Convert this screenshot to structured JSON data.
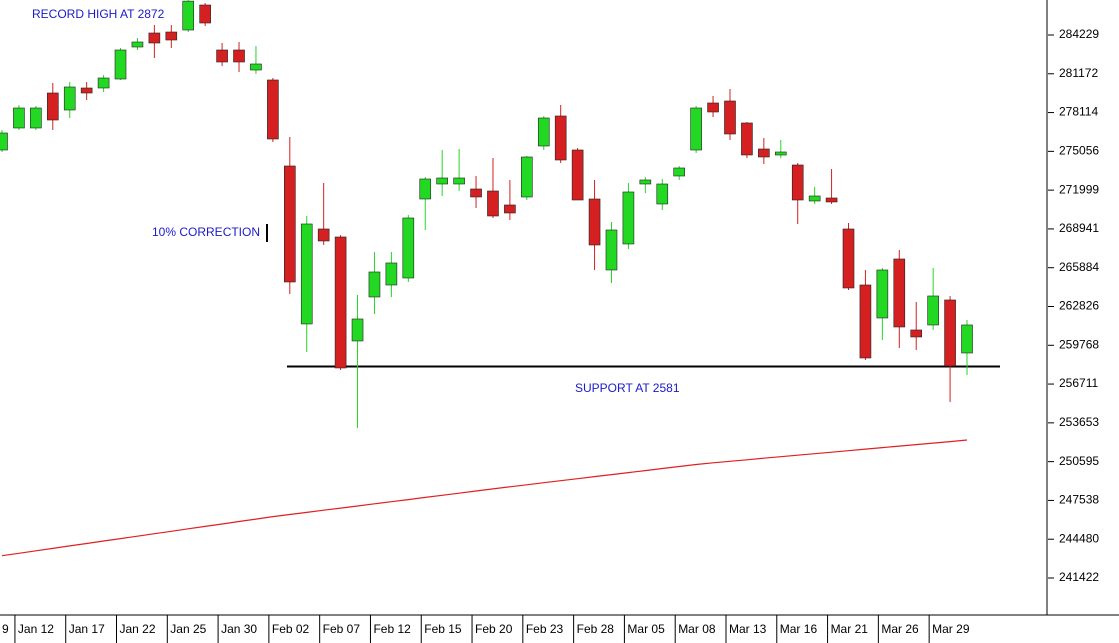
{
  "chart_data": {
    "type": "candlestick",
    "categories": [
      "9",
      "Jan 12",
      null,
      null,
      "Jan 17",
      null,
      null,
      "Jan 22",
      null,
      null,
      "Jan 25",
      null,
      null,
      "Jan 30",
      null,
      null,
      "Feb 02",
      null,
      null,
      "Feb 07",
      null,
      null,
      "Feb 12",
      null,
      null,
      "Feb 15",
      null,
      null,
      "Feb 20",
      null,
      null,
      "Feb 23",
      null,
      null,
      "Feb 28",
      null,
      null,
      "Mar 05",
      null,
      null,
      "Mar 08",
      null,
      null,
      "Mar 13",
      null,
      null,
      "Mar 16",
      null,
      null,
      "Mar 21",
      null,
      null,
      "Mar 26",
      null,
      null,
      "Mar 29",
      null,
      null
    ],
    "open": [
      275163,
      276898,
      276898,
      279657,
      278316,
      280051,
      280051,
      280760,
      283283,
      284387,
      284465,
      284623,
      286594,
      283047,
      283047,
      281470,
      280682,
      273902,
      261449,
      268936,
      268306,
      260108,
      263575,
      264521,
      265073,
      271301,
      272483,
      272483,
      272089,
      271931,
      270828,
      271458,
      275479,
      277844,
      275163,
      271301,
      265704,
      267754,
      272483,
      270907,
      273114,
      275163,
      278869,
      279026,
      277292,
      275242,
      274769,
      273981,
      271143,
      271380,
      268936,
      264521,
      261920,
      266571,
      260974,
      261368,
      263339,
      259161
    ],
    "high": [
      276740,
      278711,
      278632,
      280445,
      280524,
      280524,
      281076,
      283204,
      283992,
      285017,
      285017,
      287200,
      286752,
      283598,
      283677,
      283362,
      280839,
      276188,
      269961,
      272562,
      268463,
      263733,
      267123,
      267123,
      270040,
      273035,
      275163,
      275242,
      273114,
      274533,
      272799,
      274690,
      277844,
      278711,
      275321,
      272799,
      269488,
      272562,
      273035,
      272877,
      273902,
      278632,
      279420,
      279972,
      277371,
      276110,
      275952,
      274139,
      272247,
      273666,
      269409,
      265704,
      265862,
      267281,
      263181,
      265862,
      263654,
      261762
    ],
    "low": [
      275006,
      276740,
      276740,
      276740,
      277686,
      279105,
      279736,
      280682,
      283047,
      282416,
      283204,
      284465,
      284938,
      281785,
      281312,
      281155,
      275794,
      263812,
      259240,
      267675,
      257821,
      253248,
      262235,
      263575,
      264758,
      268857,
      271537,
      271931,
      270592,
      269803,
      269645,
      271222,
      275163,
      274139,
      271222,
      265704,
      264679,
      267360,
      271774,
      270434,
      272799,
      274927,
      277765,
      275952,
      274533,
      274060,
      274533,
      269330,
      270907,
      270907,
      264127,
      258609,
      260186,
      259556,
      259398,
      260974,
      255298,
      257426
    ],
    "close": [
      276504,
      278474,
      278474,
      277528,
      280130,
      279657,
      280839,
      283047,
      283677,
      283598,
      283835,
      286900,
      285175,
      282101,
      282101,
      281943,
      276031,
      264758,
      269330,
      267990,
      257979,
      261841,
      265546,
      266256,
      269803,
      272877,
      272956,
      272956,
      271458,
      269961,
      270197,
      274611,
      277686,
      274375,
      271222,
      267675,
      268857,
      271853,
      272799,
      272483,
      273745,
      278474,
      278159,
      276425,
      274769,
      274611,
      275006,
      271222,
      271537,
      271065,
      264285,
      258767,
      265704,
      261210,
      260422,
      263654,
      258136,
      261368
    ],
    "up_color": "#22d822",
    "down_color": "#d42020",
    "series": [
      {
        "color": "#e02020",
        "values": [
          243182,
          243371,
          243568,
          243757,
          243954,
          244144,
          244341,
          244530,
          244719,
          244917,
          245106,
          245303,
          245492,
          245681,
          245878,
          246067,
          246264,
          246430,
          246595,
          246769,
          246934,
          247100,
          247274,
          247439,
          247605,
          247778,
          247944,
          248109,
          248283,
          248448,
          248614,
          248771,
          248937,
          249094,
          249252,
          249418,
          249576,
          249733,
          249891,
          250056,
          250214,
          250371,
          250506,
          250624,
          250742,
          250868,
          250986,
          251105,
          251223,
          251341,
          251459,
          251586,
          251704,
          251822,
          251940,
          252058,
          252177,
          252303
        ]
      }
    ],
    "support": 258100,
    "annotations": [
      "RECORD HIGH AT 2872",
      "10% CORRECTION",
      "SUPPORT AT 2581"
    ],
    "ylim": [
      238505,
      286988
    ],
    "yticks": [
      284229,
      281172,
      278114,
      275056,
      271999,
      268941,
      265884,
      262826,
      259768,
      256711,
      253653,
      250595,
      247538,
      244480,
      241422
    ]
  }
}
